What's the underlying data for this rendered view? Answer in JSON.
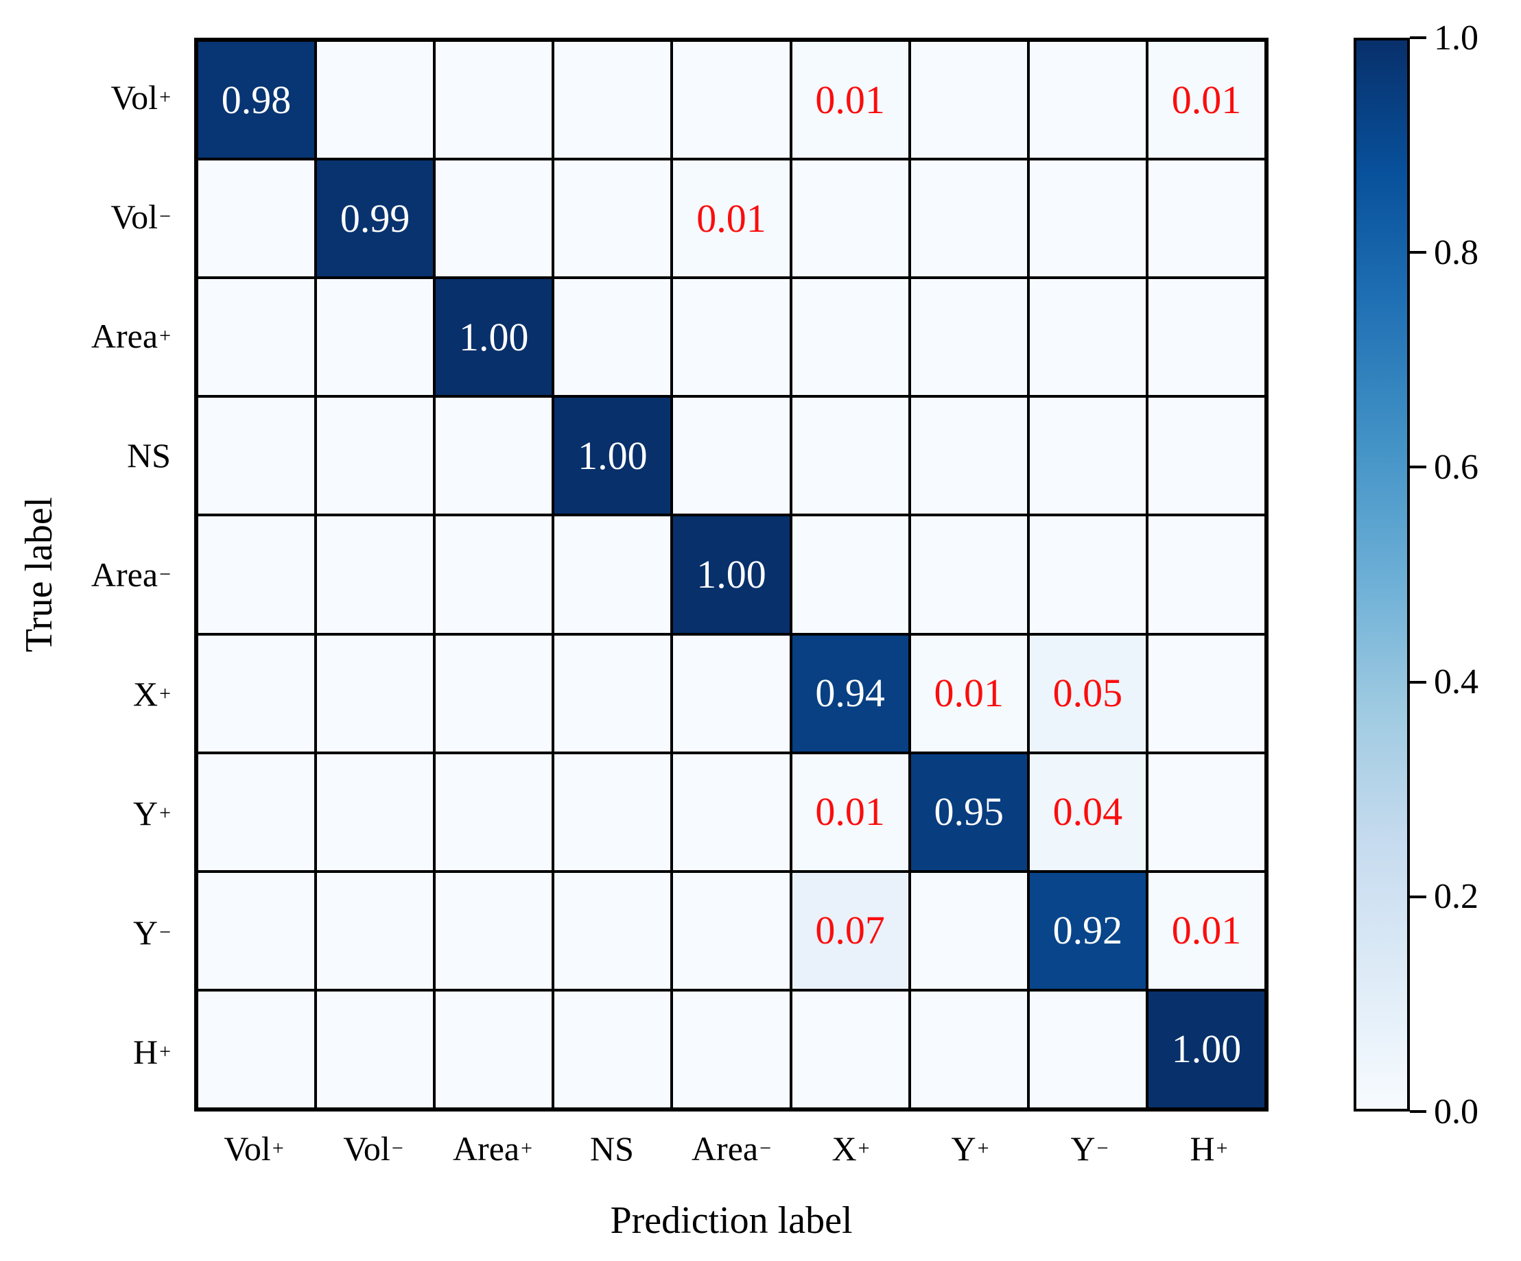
{
  "chart_data": {
    "type": "heatmap",
    "title": "",
    "xlabel": "Prediction label",
    "ylabel": "True label",
    "row_labels": [
      {
        "base": "Vol",
        "sup": "+"
      },
      {
        "base": "Vol",
        "sup": "−"
      },
      {
        "base": "Area",
        "sup": "+"
      },
      {
        "base": "NS",
        "sup": ""
      },
      {
        "base": "Area",
        "sup": "−"
      },
      {
        "base": "X",
        "sup": "+"
      },
      {
        "base": "Y",
        "sup": "+"
      },
      {
        "base": "Y",
        "sup": "−"
      },
      {
        "base": "H",
        "sup": "+"
      }
    ],
    "col_labels": [
      {
        "base": "Vol",
        "sup": "+"
      },
      {
        "base": "Vol",
        "sup": "−"
      },
      {
        "base": "Area",
        "sup": "+"
      },
      {
        "base": "NS",
        "sup": ""
      },
      {
        "base": "Area",
        "sup": "−"
      },
      {
        "base": "X",
        "sup": "+"
      },
      {
        "base": "Y",
        "sup": "+"
      },
      {
        "base": "Y",
        "sup": "−"
      },
      {
        "base": "H",
        "sup": "+"
      }
    ],
    "matrix": [
      [
        0.98,
        0,
        0,
        0,
        0,
        0.01,
        0,
        0,
        0.01
      ],
      [
        0,
        0.99,
        0,
        0,
        0.01,
        0,
        0,
        0,
        0
      ],
      [
        0,
        0,
        1.0,
        0,
        0,
        0,
        0,
        0,
        0
      ],
      [
        0,
        0,
        0,
        1.0,
        0,
        0,
        0,
        0,
        0
      ],
      [
        0,
        0,
        0,
        0,
        1.0,
        0,
        0,
        0,
        0
      ],
      [
        0,
        0,
        0,
        0,
        0,
        0.94,
        0.01,
        0.05,
        0
      ],
      [
        0,
        0,
        0,
        0,
        0,
        0.01,
        0.95,
        0.04,
        0
      ],
      [
        0,
        0,
        0,
        0,
        0,
        0.07,
        0,
        0.92,
        0.01
      ],
      [
        0,
        0,
        0,
        0,
        0,
        0,
        0,
        0,
        1.0
      ]
    ],
    "value_decimals": 2,
    "legend_position": "right-colorbar",
    "grid": true,
    "colormap": "Blues",
    "colormap_anchors": [
      [
        0.0,
        "#f7fbff"
      ],
      [
        0.125,
        "#deebf7"
      ],
      [
        0.25,
        "#c6dbef"
      ],
      [
        0.375,
        "#9ecae1"
      ],
      [
        0.5,
        "#6baed6"
      ],
      [
        0.625,
        "#4292c6"
      ],
      [
        0.75,
        "#2171b5"
      ],
      [
        0.875,
        "#08519c"
      ],
      [
        1.0,
        "#08306b"
      ]
    ],
    "colorbar_ticks": [
      {
        "value": 1.0,
        "label": "1.0"
      },
      {
        "value": 0.8,
        "label": "0.8"
      },
      {
        "value": 0.6,
        "label": "0.6"
      },
      {
        "value": 0.4,
        "label": "0.4"
      },
      {
        "value": 0.2,
        "label": "0.2"
      },
      {
        "value": 0.0,
        "label": "0.0"
      }
    ],
    "colors": {
      "diag_text": "#ffffff",
      "offdiag_text": "#fb0d0d",
      "grid_line": "#000000",
      "axis_text": "#000000",
      "background": "#ffffff"
    }
  }
}
